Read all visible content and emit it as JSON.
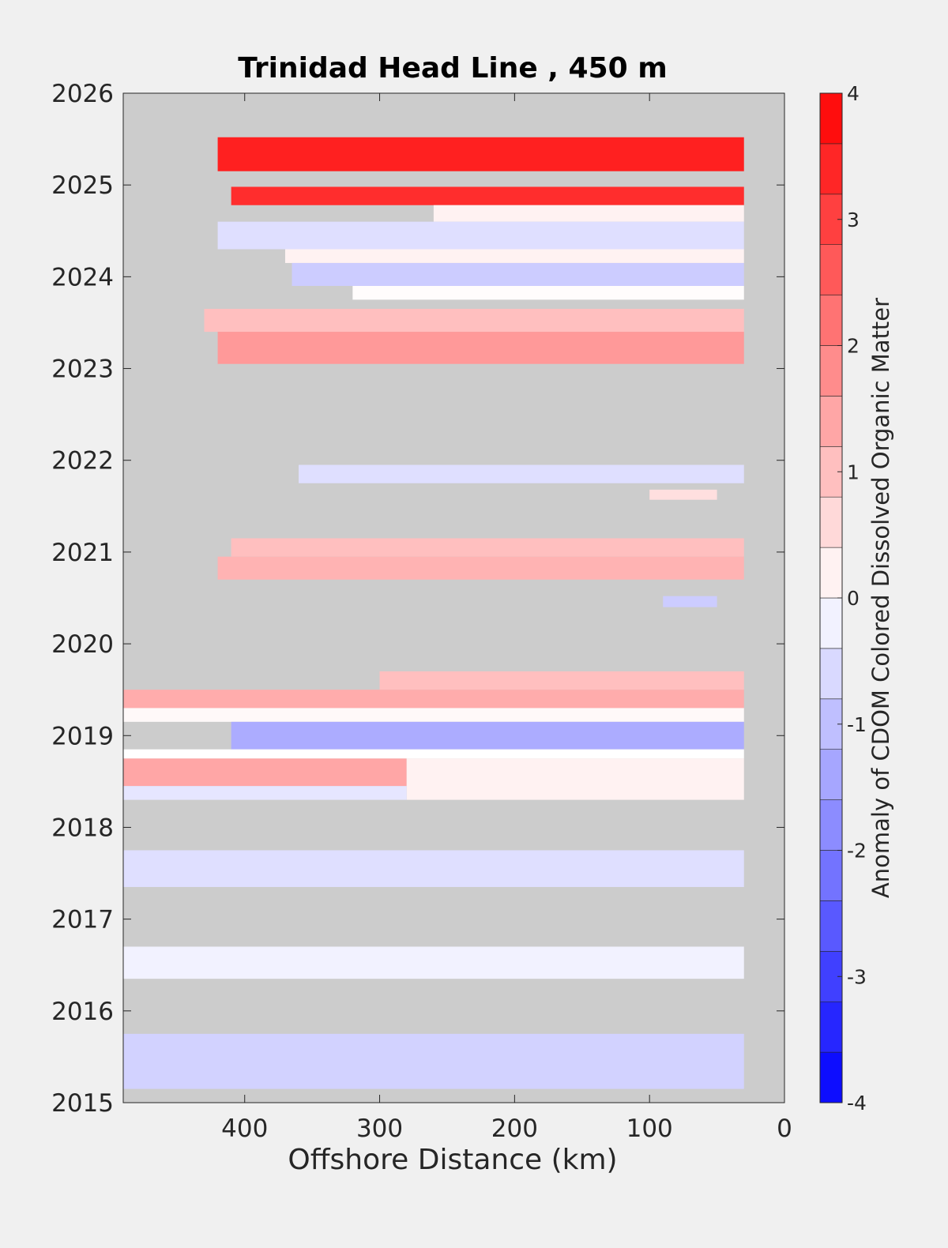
{
  "chart_data": {
    "type": "heatmap",
    "title": "Trinidad Head Line , 450 m",
    "xlabel": "Offshore Distance (km)",
    "ylabel": "",
    "xlim": [
      490,
      0
    ],
    "ylim": [
      2015,
      2026
    ],
    "x_ticks": [
      400,
      300,
      200,
      100,
      0
    ],
    "y_ticks": [
      2015,
      2016,
      2017,
      2018,
      2019,
      2020,
      2021,
      2022,
      2023,
      2024,
      2025,
      2026
    ],
    "x_axis_reversed": true,
    "missing_color": "#cccccc",
    "colorbar": {
      "label": "Anomaly of CDOM Colored Dissolved Organic Matter",
      "range": [
        -4,
        4
      ],
      "ticks": [
        4,
        3,
        2,
        1,
        0,
        -1,
        -2,
        -3,
        -4
      ],
      "levels": 20,
      "colormap": "blue-white-red",
      "low_color": "#0000ff",
      "mid_color": "#ffffff",
      "high_color": "#ff0000"
    },
    "bands": [
      {
        "y0": 2025.15,
        "y1": 2025.52,
        "x0": 420,
        "x1": 30,
        "value": 3.5
      },
      {
        "y0": 2024.78,
        "y1": 2024.98,
        "x0": 410,
        "x1": 30,
        "value": 3.3
      },
      {
        "y0": 2024.6,
        "y1": 2024.78,
        "x0": 260,
        "x1": 30,
        "value": 0.2
      },
      {
        "y0": 2024.3,
        "y1": 2024.6,
        "x0": 420,
        "x1": 30,
        "value": -0.5
      },
      {
        "y0": 2024.15,
        "y1": 2024.3,
        "x0": 370,
        "x1": 30,
        "value": 0.2
      },
      {
        "y0": 2023.9,
        "y1": 2024.15,
        "x0": 365,
        "x1": 30,
        "value": -0.8
      },
      {
        "y0": 2023.75,
        "y1": 2023.9,
        "x0": 320,
        "x1": 30,
        "value": 0.05
      },
      {
        "y0": 2023.4,
        "y1": 2023.65,
        "x0": 430,
        "x1": 30,
        "value": 1.0
      },
      {
        "y0": 2023.05,
        "y1": 2023.4,
        "x0": 420,
        "x1": 30,
        "value": 1.6
      },
      {
        "y0": 2021.75,
        "y1": 2021.95,
        "x0": 360,
        "x1": 30,
        "value": -0.5
      },
      {
        "y0": 2021.57,
        "y1": 2021.68,
        "x0": 100,
        "x1": 50,
        "value": 0.5
      },
      {
        "y0": 2020.95,
        "y1": 2021.15,
        "x0": 410,
        "x1": 30,
        "value": 1.0
      },
      {
        "y0": 2020.7,
        "y1": 2020.95,
        "x0": 420,
        "x1": 30,
        "value": 1.2
      },
      {
        "y0": 2020.4,
        "y1": 2020.52,
        "x0": 90,
        "x1": 50,
        "value": -0.8
      },
      {
        "y0": 2019.5,
        "y1": 2019.7,
        "x0": 300,
        "x1": 30,
        "value": 1.0
      },
      {
        "y0": 2019.3,
        "y1": 2019.5,
        "x0": 490,
        "x1": 30,
        "value": 1.3
      },
      {
        "y0": 2019.15,
        "y1": 2019.3,
        "x0": 490,
        "x1": 30,
        "value": 0.1
      },
      {
        "y0": 2018.85,
        "y1": 2019.15,
        "x0": 410,
        "x1": 30,
        "value": -1.3
      },
      {
        "y0": 2018.75,
        "y1": 2018.85,
        "x0": 490,
        "x1": 30,
        "value": 0.0
      },
      {
        "y0": 2018.45,
        "y1": 2018.75,
        "x0": 490,
        "x1": 280,
        "value": 1.4
      },
      {
        "y0": 2018.3,
        "y1": 2018.75,
        "x0": 280,
        "x1": 30,
        "value": 0.2
      },
      {
        "y0": 2018.3,
        "y1": 2018.45,
        "x0": 490,
        "x1": 280,
        "value": -0.4
      },
      {
        "y0": 2017.35,
        "y1": 2017.75,
        "x0": 490,
        "x1": 30,
        "value": -0.5
      },
      {
        "y0": 2016.35,
        "y1": 2016.7,
        "x0": 490,
        "x1": 30,
        "value": -0.2
      },
      {
        "y0": 2015.15,
        "y1": 2015.75,
        "x0": 490,
        "x1": 30,
        "value": -0.7
      }
    ]
  }
}
